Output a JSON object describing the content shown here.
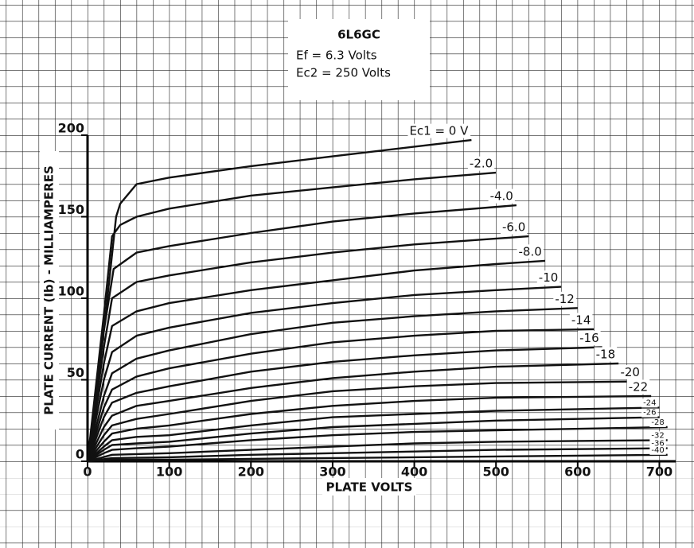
{
  "chart_data": {
    "type": "line",
    "annotation_box": {
      "title": "6L6GC",
      "lines": [
        "Ef = 6.3 Volts",
        "Ec2 = 250 Volts"
      ]
    },
    "xlabel": "PLATE VOLTS",
    "ylabel": "PLATE CURRENT (Ib) - MILLIAMPERES",
    "xlim": [
      0,
      720
    ],
    "ylim": [
      0,
      200
    ],
    "xticks": [
      0,
      100,
      200,
      300,
      400,
      500,
      600,
      700
    ],
    "yticks": [
      0,
      50,
      100,
      150,
      200
    ],
    "color": "#111111",
    "series": [
      {
        "name": "Ec1 = 0 V",
        "x": [
          0,
          20,
          35,
          40,
          60,
          100,
          200,
          300,
          400,
          470
        ],
        "values": [
          0,
          80,
          150,
          158,
          170,
          174,
          181,
          187,
          193,
          197
        ]
      },
      {
        "name": "-2.0",
        "x": [
          0,
          20,
          30,
          40,
          60,
          100,
          200,
          300,
          400,
          500
        ],
        "values": [
          0,
          90,
          138,
          145,
          150,
          155,
          163,
          168,
          173,
          177
        ]
      },
      {
        "name": "-4.0",
        "x": [
          0,
          20,
          32,
          60,
          100,
          200,
          300,
          400,
          525
        ],
        "values": [
          0,
          80,
          118,
          128,
          132,
          140,
          147,
          152,
          157
        ]
      },
      {
        "name": "-6.0",
        "x": [
          0,
          20,
          30,
          60,
          100,
          200,
          300,
          400,
          540
        ],
        "values": [
          0,
          70,
          100,
          110,
          114,
          122,
          128,
          133,
          138
        ]
      },
      {
        "name": "-8.0",
        "x": [
          0,
          20,
          30,
          60,
          100,
          200,
          300,
          400,
          500,
          560
        ],
        "values": [
          0,
          60,
          83,
          92,
          97,
          105,
          111,
          117,
          121,
          123
        ]
      },
      {
        "name": "-10",
        "x": [
          0,
          20,
          30,
          60,
          100,
          200,
          300,
          400,
          500,
          580
        ],
        "values": [
          0,
          50,
          67,
          77,
          82,
          91,
          97,
          102,
          105,
          107
        ]
      },
      {
        "name": "-12",
        "x": [
          0,
          20,
          30,
          60,
          100,
          200,
          300,
          400,
          500,
          600
        ],
        "values": [
          0,
          40,
          54,
          63,
          68,
          78,
          85,
          89,
          92,
          94
        ]
      },
      {
        "name": "-14",
        "x": [
          0,
          20,
          30,
          60,
          100,
          200,
          300,
          400,
          500,
          620
        ],
        "values": [
          0,
          33,
          44,
          52,
          57,
          66,
          73,
          77,
          80,
          81
        ]
      },
      {
        "name": "-16",
        "x": [
          0,
          20,
          30,
          60,
          100,
          200,
          300,
          400,
          500,
          630
        ],
        "values": [
          0,
          27,
          36,
          42,
          46,
          55,
          61,
          65,
          68,
          70
        ]
      },
      {
        "name": "-18",
        "x": [
          0,
          20,
          30,
          60,
          100,
          200,
          300,
          400,
          500,
          650
        ],
        "values": [
          0,
          21,
          28,
          34,
          37,
          45,
          51,
          55,
          58,
          60
        ]
      },
      {
        "name": "-20",
        "x": [
          0,
          20,
          30,
          60,
          100,
          200,
          300,
          400,
          500,
          680
        ],
        "values": [
          0,
          16,
          22,
          26,
          29,
          37,
          43,
          46,
          48,
          49
        ]
      },
      {
        "name": "-22",
        "x": [
          0,
          20,
          30,
          60,
          100,
          200,
          300,
          400,
          500,
          690
        ],
        "values": [
          0,
          12,
          17,
          20,
          22,
          29,
          34,
          37,
          39,
          40
        ]
      },
      {
        "name": "-24",
        "x": [
          0,
          20,
          30,
          60,
          100,
          200,
          300,
          400,
          500,
          700
        ],
        "values": [
          0,
          9,
          13,
          15,
          16,
          22,
          27,
          29,
          31,
          33
        ]
      },
      {
        "name": "-26",
        "x": [
          0,
          20,
          30,
          60,
          100,
          200,
          300,
          400,
          500,
          700
        ],
        "values": [
          0,
          7,
          10,
          11,
          12,
          17,
          21,
          23,
          25,
          27
        ]
      },
      {
        "name": "-28",
        "x": [
          0,
          20,
          30,
          60,
          100,
          200,
          300,
          400,
          500,
          710
        ],
        "values": [
          0,
          5,
          7,
          8,
          9,
          13,
          16,
          18,
          19,
          21
        ]
      },
      {
        "name": "-32",
        "x": [
          0,
          30,
          100,
          200,
          300,
          400,
          500,
          710
        ],
        "values": [
          0,
          4,
          5,
          7,
          9,
          11,
          12,
          13
        ]
      },
      {
        "name": "-36",
        "x": [
          0,
          30,
          100,
          200,
          300,
          400,
          500,
          710
        ],
        "values": [
          0,
          2,
          2.5,
          4,
          5,
          6,
          7,
          8
        ]
      },
      {
        "name": "-40",
        "x": [
          0,
          30,
          100,
          200,
          300,
          400,
          500,
          710
        ],
        "values": [
          0,
          1,
          1,
          1.5,
          2,
          2.5,
          3,
          4
        ]
      }
    ]
  }
}
